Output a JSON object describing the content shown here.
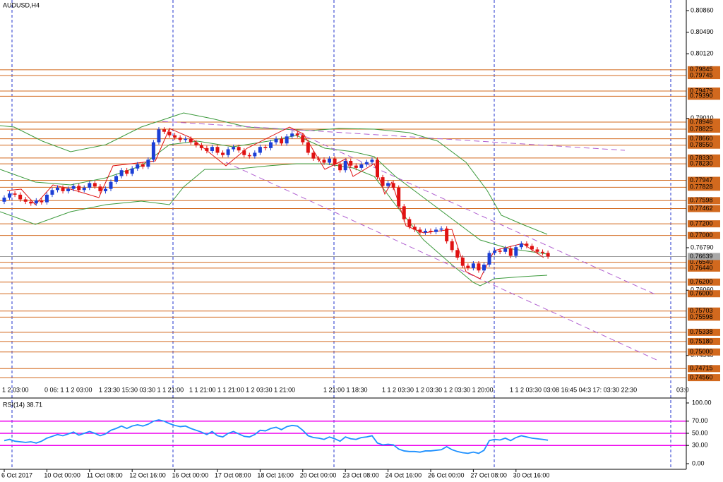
{
  "chart_data": [
    {
      "type": "candlestick",
      "title": "AUDUSD,H4",
      "x": [
        "6 Oct 2017",
        null,
        null,
        null,
        null,
        null,
        null,
        null,
        "10 Oct 00:00",
        null,
        null,
        null,
        null,
        null,
        null,
        null,
        "11 Oct 08:00",
        null,
        null,
        null,
        null,
        null,
        null,
        null,
        "12 Oct 16:00",
        null,
        null,
        null,
        null,
        null,
        null,
        null,
        "16 Oct 00:00",
        null,
        null,
        null,
        null,
        null,
        null,
        null,
        "17 Oct 08:00",
        null,
        null,
        null,
        null,
        null,
        null,
        null,
        "18 Oct 16:00",
        null,
        null,
        null,
        null,
        null,
        null,
        null,
        "20 Oct 00:00",
        null,
        null,
        null,
        null,
        null,
        null,
        null,
        "23 Oct 08:00",
        null,
        null,
        null,
        null,
        null,
        null,
        null,
        "24 Oct 16:00",
        null,
        null,
        null,
        null,
        null,
        null,
        null,
        "26 Oct 00:00",
        null,
        null,
        null,
        null,
        null,
        null,
        null,
        "27 Oct 08:00",
        null,
        null,
        null,
        null,
        null,
        null,
        null,
        "30 Oct 16:00",
        null,
        null,
        null,
        null,
        null,
        null
      ],
      "open": [
        0.7758,
        0.7765,
        0.7772,
        0.777,
        0.7762,
        0.7758,
        0.7755,
        0.776,
        0.7757,
        0.777,
        0.7778,
        0.7782,
        0.7776,
        0.778,
        0.7785,
        0.7778,
        0.7782,
        0.779,
        0.7784,
        0.7776,
        0.778,
        0.7792,
        0.7802,
        0.7812,
        0.7806,
        0.7815,
        0.7822,
        0.7818,
        0.783,
        0.786,
        0.7882,
        0.7878,
        0.7872,
        0.7868,
        0.7864,
        0.7866,
        0.786,
        0.7855,
        0.785,
        0.7845,
        0.7852,
        0.7842,
        0.7838,
        0.7848,
        0.7852,
        0.7846,
        0.7838,
        0.7836,
        0.7842,
        0.7852,
        0.785,
        0.786,
        0.7866,
        0.7858,
        0.787,
        0.7875,
        0.7872,
        0.786,
        0.7842,
        0.7832,
        0.783,
        0.7825,
        0.7832,
        0.7822,
        0.7812,
        0.7828,
        0.782,
        0.7816,
        0.7822,
        0.7826,
        0.783,
        0.78,
        0.7785,
        0.779,
        0.7782,
        0.775,
        0.7728,
        0.7715,
        0.771,
        0.7705,
        0.7708,
        0.7706,
        0.771,
        0.7712,
        0.769,
        0.7675,
        0.7662,
        0.7648,
        0.7644,
        0.7652,
        0.764,
        0.765,
        0.767,
        0.7674,
        0.7672,
        0.7678,
        0.7665,
        0.768,
        0.7686,
        0.7682,
        0.7676,
        0.7672,
        0.767
      ],
      "high": [
        0.7769,
        0.7776,
        0.7776,
        0.7774,
        0.7766,
        0.7762,
        0.7764,
        0.7764,
        0.7774,
        0.7782,
        0.7786,
        0.7786,
        0.7784,
        0.7789,
        0.7789,
        0.7786,
        0.7794,
        0.7794,
        0.7788,
        0.7784,
        0.7796,
        0.7806,
        0.7816,
        0.7816,
        0.7819,
        0.7826,
        0.7826,
        0.7834,
        0.7864,
        0.7886,
        0.7886,
        0.7882,
        0.7876,
        0.7872,
        0.787,
        0.787,
        0.7864,
        0.7859,
        0.7854,
        0.7856,
        0.7856,
        0.7846,
        0.7852,
        0.7856,
        0.7856,
        0.785,
        0.7842,
        0.7846,
        0.7856,
        0.7856,
        0.7864,
        0.787,
        0.787,
        0.7874,
        0.7879,
        0.7879,
        0.7876,
        0.7864,
        0.7846,
        0.7836,
        0.7834,
        0.7836,
        0.7836,
        0.7826,
        0.7832,
        0.7832,
        0.7824,
        0.7826,
        0.783,
        0.7834,
        0.7834,
        0.7804,
        0.7794,
        0.7794,
        0.7786,
        0.7754,
        0.7732,
        0.7719,
        0.7714,
        0.7712,
        0.7712,
        0.7714,
        0.7716,
        0.7716,
        0.7694,
        0.7679,
        0.7666,
        0.7652,
        0.7656,
        0.7656,
        0.7654,
        0.7674,
        0.7678,
        0.7678,
        0.7682,
        0.7682,
        0.7684,
        0.769,
        0.769,
        0.7686,
        0.768,
        0.7676,
        0.7674
      ],
      "low": [
        0.7754,
        0.7761,
        0.7766,
        0.7758,
        0.7754,
        0.7751,
        0.7751,
        0.7753,
        0.7753,
        0.7766,
        0.7774,
        0.7772,
        0.7772,
        0.7776,
        0.7774,
        0.7774,
        0.7778,
        0.778,
        0.7772,
        0.7772,
        0.7776,
        0.7788,
        0.7798,
        0.7802,
        0.7802,
        0.7811,
        0.7814,
        0.7814,
        0.7826,
        0.7856,
        0.7874,
        0.7868,
        0.7864,
        0.786,
        0.786,
        0.7856,
        0.7851,
        0.7846,
        0.7841,
        0.7841,
        0.7838,
        0.7834,
        0.7834,
        0.7844,
        0.7842,
        0.7834,
        0.7832,
        0.7832,
        0.7838,
        0.7846,
        0.7846,
        0.7856,
        0.7854,
        0.7854,
        0.7866,
        0.7868,
        0.7856,
        0.7838,
        0.7828,
        0.7826,
        0.7821,
        0.7821,
        0.7818,
        0.7808,
        0.7808,
        0.7816,
        0.7812,
        0.7812,
        0.7818,
        0.7822,
        0.7796,
        0.7781,
        0.7781,
        0.7778,
        0.7746,
        0.7724,
        0.7711,
        0.7706,
        0.7701,
        0.7701,
        0.7702,
        0.7702,
        0.7706,
        0.7686,
        0.7671,
        0.7658,
        0.7644,
        0.764,
        0.764,
        0.7636,
        0.7636,
        0.7646,
        0.7666,
        0.7668,
        0.7668,
        0.7661,
        0.7661,
        0.7676,
        0.7678,
        0.7672,
        0.7668,
        0.7666,
        0.766
      ],
      "close": [
        0.7765,
        0.7772,
        0.777,
        0.7762,
        0.7758,
        0.7755,
        0.776,
        0.7757,
        0.777,
        0.7778,
        0.7782,
        0.7776,
        0.778,
        0.7785,
        0.7778,
        0.7782,
        0.779,
        0.7784,
        0.7776,
        0.778,
        0.7792,
        0.7802,
        0.7812,
        0.7806,
        0.7815,
        0.7822,
        0.7818,
        0.783,
        0.786,
        0.7882,
        0.7878,
        0.7872,
        0.7868,
        0.7864,
        0.7866,
        0.786,
        0.7855,
        0.785,
        0.7845,
        0.7852,
        0.7842,
        0.7838,
        0.7848,
        0.7852,
        0.7846,
        0.7838,
        0.7836,
        0.7842,
        0.7852,
        0.785,
        0.786,
        0.7866,
        0.7858,
        0.787,
        0.7875,
        0.7872,
        0.786,
        0.7842,
        0.7832,
        0.783,
        0.7825,
        0.7832,
        0.7822,
        0.7812,
        0.7828,
        0.782,
        0.7816,
        0.7822,
        0.7826,
        0.783,
        0.78,
        0.7785,
        0.779,
        0.7782,
        0.775,
        0.7728,
        0.7715,
        0.771,
        0.7705,
        0.7708,
        0.7706,
        0.771,
        0.7712,
        0.769,
        0.7675,
        0.7662,
        0.7648,
        0.7644,
        0.7652,
        0.764,
        0.765,
        0.767,
        0.7674,
        0.7672,
        0.7678,
        0.7665,
        0.768,
        0.7686,
        0.7682,
        0.7676,
        0.7672,
        0.767,
        0.76639
      ],
      "up_color": "#1c3fd6",
      "down_color": "#e01212",
      "ylim": [
        0.74222,
        0.81042
      ],
      "yticks": [
        {
          "value": 0.8086,
          "label": "0.80860"
        },
        {
          "value": 0.8049,
          "label": "0.80490"
        },
        {
          "value": 0.8012,
          "label": "0.80120"
        },
        {
          "value": 0.7901,
          "label": "0.79010"
        },
        {
          "value": 0.7679,
          "label": "0.76790"
        },
        {
          "value": 0.7606,
          "label": "0.76060"
        },
        {
          "value": 0.7494,
          "label": "0.74940"
        }
      ],
      "levels": [
        {
          "value": 0.79845,
          "label": "0.79845"
        },
        {
          "value": 0.79745,
          "label": "0.79745"
        },
        {
          "value": 0.79479,
          "label": "0.79479"
        },
        {
          "value": 0.7939,
          "label": "0.79390"
        },
        {
          "value": 0.78946,
          "label": "0.78946"
        },
        {
          "value": 0.78825,
          "label": "0.78825"
        },
        {
          "value": 0.7866,
          "label": "0.78660"
        },
        {
          "value": 0.7855,
          "label": "0.78550"
        },
        {
          "value": 0.7833,
          "label": "0.78330"
        },
        {
          "value": 0.7823,
          "label": "0.78230"
        },
        {
          "value": 0.77947,
          "label": "0.77947"
        },
        {
          "value": 0.77828,
          "label": "0.77828"
        },
        {
          "value": 0.77598,
          "label": "0.77598"
        },
        {
          "value": 0.77462,
          "label": "0.77462"
        },
        {
          "value": 0.772,
          "label": "0.77200"
        },
        {
          "value": 0.77,
          "label": "0.77000"
        },
        {
          "value": 0.7654,
          "label": "0.76540"
        },
        {
          "value": 0.7644,
          "label": "0.76440"
        },
        {
          "value": 0.762,
          "label": "0.76200"
        },
        {
          "value": 0.76,
          "label": "0.76000"
        },
        {
          "value": 0.75703,
          "label": "0.75703"
        },
        {
          "value": 0.75598,
          "label": "0.75598"
        },
        {
          "value": 0.75338,
          "label": "0.75338"
        },
        {
          "value": 0.7518,
          "label": "0.75180"
        },
        {
          "value": 0.75,
          "label": "0.75000"
        },
        {
          "value": 0.74715,
          "label": "0.74715"
        },
        {
          "value": 0.7456,
          "label": "0.74560"
        }
      ],
      "level_color": "#d2691e",
      "current": {
        "value": 0.76639,
        "label": "0.76639"
      },
      "time_labels": [
        "1 2 03:00",
        "0 06: 1 1 2 03:00",
        "1 23:30 15:30 03:30 1 1 21:00",
        "1 1 21:00 1 1 21:00 1 2 03:30 1 21:00",
        "1 21:00 1 18:30",
        "1 1 2 03:30 1 2 03:30 1 2 03:30 1 20:00",
        "1 1 2 03:30 03:08 16:45 04:3 17: 03:30 22:30",
        "03:0"
      ]
    },
    {
      "type": "line",
      "title": "RSI(14) 38.71",
      "values": [
        38,
        40,
        37,
        36,
        35,
        36,
        34,
        37,
        42,
        45,
        48,
        46,
        49,
        52,
        47,
        50,
        53,
        50,
        46,
        49,
        55,
        58,
        62,
        58,
        62,
        64,
        62,
        65,
        70,
        72,
        70,
        66,
        63,
        61,
        62,
        58,
        55,
        52,
        48,
        53,
        46,
        44,
        50,
        53,
        49,
        45,
        44,
        48,
        55,
        54,
        58,
        60,
        56,
        61,
        63,
        62,
        55,
        46,
        43,
        42,
        40,
        44,
        41,
        37,
        44,
        41,
        40,
        43,
        44,
        46,
        34,
        31,
        32,
        31,
        24,
        21,
        20,
        20,
        19,
        21,
        21,
        22,
        23,
        28,
        23,
        20,
        18,
        17,
        19,
        17,
        22,
        38,
        40,
        39,
        42,
        38,
        43,
        46,
        44,
        42,
        41,
        40,
        38.71
      ],
      "color": "#1e90ff",
      "ylim": [
        0,
        100
      ],
      "yticks": [
        {
          "value": 100,
          "label": "100.00"
        },
        {
          "value": 70,
          "label": "70.00"
        },
        {
          "value": 50,
          "label": "50.00"
        },
        {
          "value": 30,
          "label": "30.00"
        },
        {
          "value": 0,
          "label": "0.00"
        }
      ],
      "levels": [
        70,
        50,
        30
      ],
      "level_color": "#ee00ee"
    }
  ]
}
